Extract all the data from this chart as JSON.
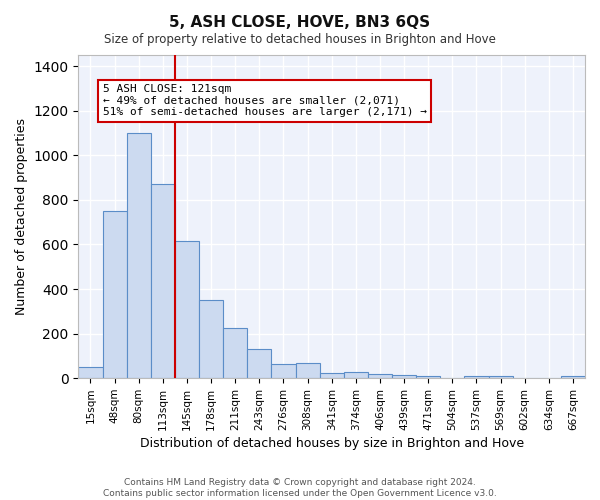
{
  "title": "5, ASH CLOSE, HOVE, BN3 6QS",
  "subtitle": "Size of property relative to detached houses in Brighton and Hove",
  "xlabel": "Distribution of detached houses by size in Brighton and Hove",
  "ylabel": "Number of detached properties",
  "footer_line1": "Contains HM Land Registry data © Crown copyright and database right 2024.",
  "footer_line2": "Contains public sector information licensed under the Open Government Licence v3.0.",
  "categories": [
    "15sqm",
    "48sqm",
    "80sqm",
    "113sqm",
    "145sqm",
    "178sqm",
    "211sqm",
    "243sqm",
    "276sqm",
    "308sqm",
    "341sqm",
    "374sqm",
    "406sqm",
    "439sqm",
    "471sqm",
    "504sqm",
    "537sqm",
    "569sqm",
    "602sqm",
    "634sqm",
    "667sqm"
  ],
  "values": [
    50,
    750,
    1100,
    870,
    615,
    350,
    225,
    130,
    65,
    70,
    25,
    30,
    20,
    15,
    10,
    2,
    10,
    10,
    2,
    2,
    10
  ],
  "bar_color": "#ccdaf0",
  "bar_edge_color": "#5b8dc8",
  "background_color": "#eef2fb",
  "grid_color": "#ffffff",
  "annotation_text": "5 ASH CLOSE: 121sqm\n← 49% of detached houses are smaller (2,071)\n51% of semi-detached houses are larger (2,171) →",
  "annotation_box_color": "#ffffff",
  "annotation_box_edge_color": "#cc0000",
  "vline_color": "#cc0000",
  "ylim": [
    0,
    1450
  ],
  "yticks": [
    0,
    200,
    400,
    600,
    800,
    1000,
    1200,
    1400
  ]
}
